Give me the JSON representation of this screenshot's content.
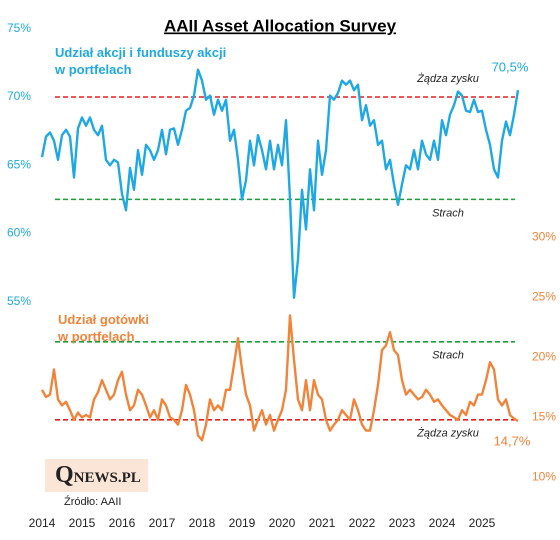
{
  "chart_data": {
    "type": "line",
    "title": "AAII Asset Allocation Survey",
    "x": [
      2014.0,
      2014.1,
      2014.2,
      2014.3,
      2014.4,
      2014.5,
      2014.6,
      2014.7,
      2014.8,
      2014.9,
      2015.0,
      2015.1,
      2015.2,
      2015.3,
      2015.4,
      2015.5,
      2015.6,
      2015.7,
      2015.8,
      2015.9,
      2016.0,
      2016.1,
      2016.2,
      2016.3,
      2016.4,
      2016.5,
      2016.6,
      2016.7,
      2016.8,
      2016.9,
      2017.0,
      2017.1,
      2017.2,
      2017.3,
      2017.4,
      2017.5,
      2017.6,
      2017.7,
      2017.8,
      2017.9,
      2018.0,
      2018.1,
      2018.2,
      2018.3,
      2018.4,
      2018.5,
      2018.6,
      2018.7,
      2018.8,
      2018.9,
      2019.0,
      2019.1,
      2019.2,
      2019.3,
      2019.4,
      2019.5,
      2019.6,
      2019.7,
      2019.8,
      2019.9,
      2020.0,
      2020.1,
      2020.2,
      2020.3,
      2020.4,
      2020.5,
      2020.6,
      2020.7,
      2020.8,
      2020.9,
      2021.0,
      2021.1,
      2021.2,
      2021.3,
      2021.4,
      2021.5,
      2021.6,
      2021.7,
      2021.8,
      2021.9,
      2022.0,
      2022.1,
      2022.2,
      2022.3,
      2022.4,
      2022.5,
      2022.6,
      2022.7,
      2022.8,
      2022.9,
      2023.0,
      2023.1,
      2023.2,
      2023.3,
      2023.4,
      2023.5,
      2023.6,
      2023.7,
      2023.8,
      2023.9,
      2024.0,
      2024.1,
      2024.2,
      2024.3,
      2024.4,
      2024.5,
      2024.6,
      2024.7,
      2024.8,
      2024.9,
      2025.0,
      2025.1,
      2025.2,
      2025.3,
      2025.4,
      2025.5,
      2025.6,
      2025.7,
      2025.8,
      2025.9
    ],
    "series": [
      {
        "name": "Udział akcji i funduszy akcji\nw portfelach",
        "color": "#1fa8e1",
        "axis": "y",
        "end_label": "70,5%",
        "values": [
          65.6,
          67.1,
          67.4,
          66.8,
          65.4,
          67.2,
          67.6,
          67.1,
          64.1,
          67.7,
          68.5,
          67.9,
          68.5,
          67.6,
          67.2,
          67.9,
          65.4,
          65.0,
          65.4,
          65.2,
          62.9,
          61.7,
          64.8,
          63.2,
          66.1,
          64.3,
          66.5,
          66.1,
          65.4,
          66.1,
          67.6,
          65.8,
          67.6,
          67.7,
          66.5,
          67.6,
          69.0,
          69.2,
          70.1,
          72.0,
          71.2,
          69.8,
          70.1,
          68.7,
          69.8,
          69.0,
          69.8,
          66.8,
          67.6,
          65.4,
          62.5,
          63.9,
          66.8,
          65.0,
          67.2,
          66.1,
          64.7,
          66.8,
          64.7,
          66.5,
          65.0,
          68.3,
          62.5,
          55.3,
          58.1,
          63.2,
          60.3,
          64.7,
          61.7,
          66.8,
          64.3,
          66.1,
          70.1,
          69.8,
          70.3,
          71.2,
          70.9,
          71.2,
          70.5,
          70.9,
          68.3,
          69.4,
          67.9,
          68.3,
          66.5,
          66.8,
          64.7,
          65.4,
          63.6,
          62.1,
          63.6,
          65.0,
          64.7,
          66.1,
          64.7,
          66.8,
          65.8,
          65.4,
          66.8,
          65.4,
          68.3,
          67.2,
          68.7,
          69.4,
          70.4,
          70.1,
          69.0,
          68.9,
          69.8,
          68.9,
          69.0,
          67.6,
          66.5,
          64.7,
          64.1,
          66.8,
          68.2,
          67.2,
          68.7,
          70.5
        ]
      },
      {
        "name": "Udział gotówki\nw portfelach",
        "color": "#f0843a",
        "axis": "y2",
        "end_label": "14,7%",
        "values": [
          17.3,
          16.7,
          16.9,
          19.0,
          16.5,
          16.0,
          16.3,
          15.6,
          14.8,
          15.4,
          15.0,
          15.2,
          15.0,
          16.5,
          17.1,
          18.1,
          17.3,
          16.5,
          16.9,
          18.1,
          18.8,
          16.9,
          15.6,
          16.0,
          17.3,
          16.9,
          16.0,
          15.0,
          15.6,
          14.8,
          16.5,
          16.0,
          15.0,
          14.8,
          14.4,
          15.6,
          17.7,
          16.9,
          15.6,
          13.5,
          13.1,
          14.4,
          16.5,
          15.6,
          16.0,
          15.6,
          17.3,
          17.3,
          19.4,
          21.6,
          19.0,
          16.9,
          16.0,
          13.9,
          14.8,
          15.6,
          14.4,
          15.2,
          13.9,
          14.8,
          15.6,
          17.3,
          23.5,
          19.8,
          16.5,
          15.6,
          18.1,
          15.6,
          18.1,
          16.9,
          16.5,
          14.8,
          13.9,
          14.4,
          14.8,
          15.6,
          15.2,
          14.8,
          16.5,
          15.6,
          14.4,
          13.9,
          13.9,
          15.6,
          17.7,
          20.6,
          21.0,
          22.1,
          20.6,
          20.2,
          18.1,
          16.9,
          17.3,
          16.9,
          16.5,
          16.7,
          17.3,
          16.9,
          16.3,
          16.5,
          16.0,
          15.6,
          15.2,
          15.0,
          14.8,
          15.6,
          15.2,
          16.3,
          16.0,
          16.9,
          16.9,
          18.1,
          19.6,
          19.0,
          16.5,
          16.0,
          16.5,
          15.2,
          14.9,
          14.7
        ]
      }
    ],
    "xlim": [
      2014,
      2026
    ],
    "xticks": [
      2014,
      2015,
      2016,
      2017,
      2018,
      2019,
      2020,
      2021,
      2022,
      2023,
      2024,
      2025
    ],
    "ylim": [
      55,
      75
    ],
    "yticks": [
      {
        "value": 55,
        "label": "55%"
      },
      {
        "value": 60,
        "label": "60%"
      },
      {
        "value": 65,
        "label": "65%"
      },
      {
        "value": 70,
        "label": "70%"
      },
      {
        "value": 75,
        "label": "75%"
      }
    ],
    "y2lim": [
      10,
      30
    ],
    "y2ticks": [
      {
        "value": 10,
        "label": "10%"
      },
      {
        "value": 15,
        "label": "15%"
      },
      {
        "value": 20,
        "label": "20%"
      },
      {
        "value": 25,
        "label": "25%"
      },
      {
        "value": 30,
        "label": "30%"
      }
    ],
    "reference_lines": [
      {
        "label": "Żądza zysku",
        "value": 70,
        "axis": "y",
        "color": "#e02020"
      },
      {
        "label": "Strach",
        "value": 62.5,
        "axis": "y",
        "color": "#1e9e3a"
      },
      {
        "label": "Strach",
        "value": 21.3,
        "axis": "y2",
        "color": "#1e9e3a"
      },
      {
        "label": "Żądza zysku",
        "value": 14.8,
        "axis": "y2",
        "color": "#e02020"
      }
    ],
    "logo": "QNEWS.PL",
    "source": "Źródło: AAII"
  }
}
